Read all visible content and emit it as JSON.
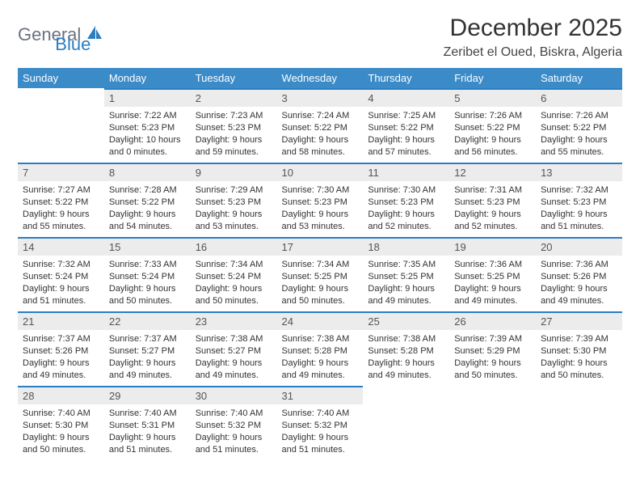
{
  "logo": {
    "part1": "General",
    "part2": "Blue"
  },
  "header": {
    "month_title": "December 2025",
    "location": "Zeribet el Oued, Biskra, Algeria"
  },
  "style": {
    "header_bg": "#3b8bc8",
    "header_text": "#ffffff",
    "daynum_bg": "#ececec",
    "daynum_border": "#2b7ec1",
    "logo_gray": "#6b7280",
    "logo_blue": "#2b7ec1",
    "title_fontsize": 30,
    "location_fontsize": 16,
    "weekday_fontsize": 13,
    "cell_fontsize": 11
  },
  "weekdays": [
    "Sunday",
    "Monday",
    "Tuesday",
    "Wednesday",
    "Thursday",
    "Friday",
    "Saturday"
  ],
  "first_weekday_index": 1,
  "days": [
    {
      "n": 1,
      "sunrise": "7:22 AM",
      "sunset": "5:23 PM",
      "daylight": "10 hours and 0 minutes."
    },
    {
      "n": 2,
      "sunrise": "7:23 AM",
      "sunset": "5:23 PM",
      "daylight": "9 hours and 59 minutes."
    },
    {
      "n": 3,
      "sunrise": "7:24 AM",
      "sunset": "5:22 PM",
      "daylight": "9 hours and 58 minutes."
    },
    {
      "n": 4,
      "sunrise": "7:25 AM",
      "sunset": "5:22 PM",
      "daylight": "9 hours and 57 minutes."
    },
    {
      "n": 5,
      "sunrise": "7:26 AM",
      "sunset": "5:22 PM",
      "daylight": "9 hours and 56 minutes."
    },
    {
      "n": 6,
      "sunrise": "7:26 AM",
      "sunset": "5:22 PM",
      "daylight": "9 hours and 55 minutes."
    },
    {
      "n": 7,
      "sunrise": "7:27 AM",
      "sunset": "5:22 PM",
      "daylight": "9 hours and 55 minutes."
    },
    {
      "n": 8,
      "sunrise": "7:28 AM",
      "sunset": "5:22 PM",
      "daylight": "9 hours and 54 minutes."
    },
    {
      "n": 9,
      "sunrise": "7:29 AM",
      "sunset": "5:23 PM",
      "daylight": "9 hours and 53 minutes."
    },
    {
      "n": 10,
      "sunrise": "7:30 AM",
      "sunset": "5:23 PM",
      "daylight": "9 hours and 53 minutes."
    },
    {
      "n": 11,
      "sunrise": "7:30 AM",
      "sunset": "5:23 PM",
      "daylight": "9 hours and 52 minutes."
    },
    {
      "n": 12,
      "sunrise": "7:31 AM",
      "sunset": "5:23 PM",
      "daylight": "9 hours and 52 minutes."
    },
    {
      "n": 13,
      "sunrise": "7:32 AM",
      "sunset": "5:23 PM",
      "daylight": "9 hours and 51 minutes."
    },
    {
      "n": 14,
      "sunrise": "7:32 AM",
      "sunset": "5:24 PM",
      "daylight": "9 hours and 51 minutes."
    },
    {
      "n": 15,
      "sunrise": "7:33 AM",
      "sunset": "5:24 PM",
      "daylight": "9 hours and 50 minutes."
    },
    {
      "n": 16,
      "sunrise": "7:34 AM",
      "sunset": "5:24 PM",
      "daylight": "9 hours and 50 minutes."
    },
    {
      "n": 17,
      "sunrise": "7:34 AM",
      "sunset": "5:25 PM",
      "daylight": "9 hours and 50 minutes."
    },
    {
      "n": 18,
      "sunrise": "7:35 AM",
      "sunset": "5:25 PM",
      "daylight": "9 hours and 49 minutes."
    },
    {
      "n": 19,
      "sunrise": "7:36 AM",
      "sunset": "5:25 PM",
      "daylight": "9 hours and 49 minutes."
    },
    {
      "n": 20,
      "sunrise": "7:36 AM",
      "sunset": "5:26 PM",
      "daylight": "9 hours and 49 minutes."
    },
    {
      "n": 21,
      "sunrise": "7:37 AM",
      "sunset": "5:26 PM",
      "daylight": "9 hours and 49 minutes."
    },
    {
      "n": 22,
      "sunrise": "7:37 AM",
      "sunset": "5:27 PM",
      "daylight": "9 hours and 49 minutes."
    },
    {
      "n": 23,
      "sunrise": "7:38 AM",
      "sunset": "5:27 PM",
      "daylight": "9 hours and 49 minutes."
    },
    {
      "n": 24,
      "sunrise": "7:38 AM",
      "sunset": "5:28 PM",
      "daylight": "9 hours and 49 minutes."
    },
    {
      "n": 25,
      "sunrise": "7:38 AM",
      "sunset": "5:28 PM",
      "daylight": "9 hours and 49 minutes."
    },
    {
      "n": 26,
      "sunrise": "7:39 AM",
      "sunset": "5:29 PM",
      "daylight": "9 hours and 50 minutes."
    },
    {
      "n": 27,
      "sunrise": "7:39 AM",
      "sunset": "5:30 PM",
      "daylight": "9 hours and 50 minutes."
    },
    {
      "n": 28,
      "sunrise": "7:40 AM",
      "sunset": "5:30 PM",
      "daylight": "9 hours and 50 minutes."
    },
    {
      "n": 29,
      "sunrise": "7:40 AM",
      "sunset": "5:31 PM",
      "daylight": "9 hours and 51 minutes."
    },
    {
      "n": 30,
      "sunrise": "7:40 AM",
      "sunset": "5:32 PM",
      "daylight": "9 hours and 51 minutes."
    },
    {
      "n": 31,
      "sunrise": "7:40 AM",
      "sunset": "5:32 PM",
      "daylight": "9 hours and 51 minutes."
    }
  ],
  "labels": {
    "sunrise_prefix": "Sunrise: ",
    "sunset_prefix": "Sunset: ",
    "daylight_prefix": "Daylight: "
  }
}
